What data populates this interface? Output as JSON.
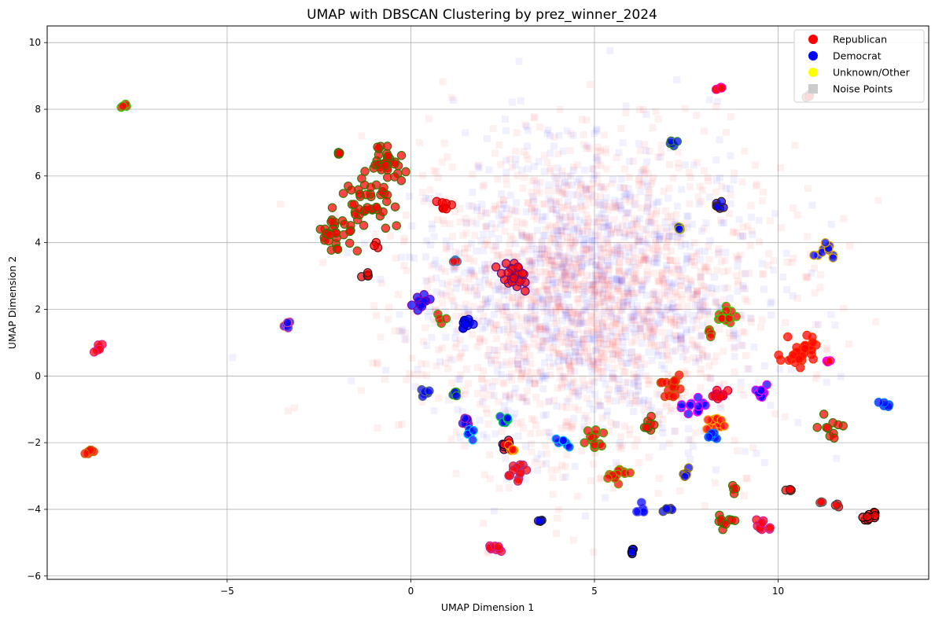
{
  "chart_data": {
    "type": "scatter",
    "title": "UMAP with DBSCAN Clustering by prez_winner_2024",
    "xlabel": "UMAP Dimension 1",
    "ylabel": "UMAP Dimension 2",
    "xlim": [
      -9.9,
      14.1
    ],
    "ylim": [
      -6.1,
      10.5
    ],
    "xticks": [
      -5,
      0,
      5,
      10
    ],
    "xtick_labels": [
      "−5",
      "0",
      "5",
      "10"
    ],
    "yticks": [
      -6,
      -4,
      -2,
      0,
      2,
      4,
      6,
      8,
      10
    ],
    "ytick_labels": [
      "−6",
      "−4",
      "−2",
      "0",
      "2",
      "4",
      "6",
      "8",
      "10"
    ],
    "grid": true,
    "legend_position": "top-right",
    "legend": [
      {
        "label": "Republican",
        "marker": "circle",
        "color": "#ff0000"
      },
      {
        "label": "Democrat",
        "marker": "circle",
        "color": "#0000ff"
      },
      {
        "label": "Unknown/Other",
        "marker": "circle",
        "color": "#ffff00"
      },
      {
        "label": "Noise Points",
        "marker": "square",
        "color": "#cccccc"
      }
    ],
    "noise_cloud": {
      "center": [
        4.8,
        2.5
      ],
      "spread": [
        2.4,
        2.3
      ],
      "red_fraction": 0.6,
      "alpha": 0.06
    },
    "clusters": [
      {
        "x": -7.8,
        "y": 8.1,
        "party": "Republican",
        "edge": "#33cc00",
        "n": 4,
        "sd": 0.05
      },
      {
        "x": -8.5,
        "y": 0.85,
        "party": "Republican",
        "edge": "#dd2288",
        "n": 6,
        "sd": 0.08
      },
      {
        "x": -8.8,
        "y": -2.3,
        "party": "Republican",
        "edge": "#cc6600",
        "n": 6,
        "sd": 0.07
      },
      {
        "x": -3.4,
        "y": 1.5,
        "party": "Democrat",
        "edge": "#dd4488",
        "n": 5,
        "sd": 0.07
      },
      {
        "x": -2.0,
        "y": 4.3,
        "party": "Republican",
        "edge": "#337700",
        "n": 30,
        "sd": 0.3
      },
      {
        "x": -1.2,
        "y": 5.3,
        "party": "Republican",
        "edge": "#337700",
        "n": 40,
        "sd": 0.35
      },
      {
        "x": -0.6,
        "y": 6.2,
        "party": "Republican",
        "edge": "#337700",
        "n": 30,
        "sd": 0.35
      },
      {
        "x": -2.0,
        "y": 6.6,
        "party": "Republican",
        "edge": "#337700",
        "n": 4,
        "sd": 0.08
      },
      {
        "x": -0.8,
        "y": 6.9,
        "party": "Republican",
        "edge": "#337700",
        "n": 4,
        "sd": 0.08
      },
      {
        "x": -1.2,
        "y": 3.0,
        "party": "Republican",
        "edge": "#222222",
        "n": 5,
        "sd": 0.05
      },
      {
        "x": -1.0,
        "y": 3.9,
        "party": "Republican",
        "edge": "#8b0000",
        "n": 3,
        "sd": 0.08
      },
      {
        "x": 0.9,
        "y": 5.15,
        "party": "Republican",
        "edge": "#cc0000",
        "n": 8,
        "sd": 0.08
      },
      {
        "x": 0.3,
        "y": 2.15,
        "party": "Democrat",
        "edge": "#8800aa",
        "n": 12,
        "sd": 0.15
      },
      {
        "x": 1.2,
        "y": 3.5,
        "party": "Republican",
        "edge": "#3388cc",
        "n": 4,
        "sd": 0.06
      },
      {
        "x": 0.8,
        "y": 1.7,
        "party": "Republican",
        "edge": "#33aa00",
        "n": 4,
        "sd": 0.06
      },
      {
        "x": 1.5,
        "y": 1.6,
        "party": "Democrat",
        "edge": "#0000aa",
        "n": 10,
        "sd": 0.09
      },
      {
        "x": 2.8,
        "y": 3.0,
        "party": "Republican",
        "edge": "#551188",
        "n": 25,
        "sd": 0.2
      },
      {
        "x": 0.4,
        "y": -0.5,
        "party": "Democrat",
        "edge": "#556677",
        "n": 6,
        "sd": 0.08
      },
      {
        "x": 1.2,
        "y": -0.5,
        "party": "Democrat",
        "edge": "#33aa00",
        "n": 6,
        "sd": 0.08
      },
      {
        "x": 1.5,
        "y": -1.4,
        "party": "Democrat",
        "edge": "#aa2299",
        "n": 6,
        "sd": 0.08
      },
      {
        "x": 1.6,
        "y": -1.75,
        "party": "Democrat",
        "edge": "#00ccff",
        "n": 6,
        "sd": 0.08
      },
      {
        "x": 2.6,
        "y": -1.4,
        "party": "Democrat",
        "edge": "#00cc55",
        "n": 6,
        "sd": 0.08
      },
      {
        "x": 2.55,
        "y": -2.1,
        "party": "Republican",
        "edge": "#220044",
        "n": 8,
        "sd": 0.1
      },
      {
        "x": 2.7,
        "y": -2.15,
        "party": "Republican",
        "edge": "#ffaa00",
        "n": 4,
        "sd": 0.06
      },
      {
        "x": 2.9,
        "y": -2.9,
        "party": "Republican",
        "edge": "#aa3388",
        "n": 12,
        "sd": 0.13
      },
      {
        "x": 2.3,
        "y": -5.2,
        "party": "Republican",
        "edge": "#cc2299",
        "n": 8,
        "sd": 0.08
      },
      {
        "x": 3.5,
        "y": -4.3,
        "party": "Democrat",
        "edge": "#222222",
        "n": 4,
        "sd": 0.05
      },
      {
        "x": 4.2,
        "y": -2.0,
        "party": "Democrat",
        "edge": "#00bbff",
        "n": 8,
        "sd": 0.1
      },
      {
        "x": 5.0,
        "y": -1.9,
        "party": "Republican",
        "edge": "#33aa00",
        "n": 12,
        "sd": 0.15
      },
      {
        "x": 5.6,
        "y": -2.9,
        "party": "Republican",
        "edge": "#77aa00",
        "n": 12,
        "sd": 0.15
      },
      {
        "x": 6.0,
        "y": -5.25,
        "party": "Democrat",
        "edge": "#000000",
        "n": 4,
        "sd": 0.04
      },
      {
        "x": 6.5,
        "y": -1.5,
        "party": "Republican",
        "edge": "#337700",
        "n": 8,
        "sd": 0.12
      },
      {
        "x": 6.3,
        "y": -4.0,
        "party": "Democrat",
        "edge": "#5555ff",
        "n": 6,
        "sd": 0.08
      },
      {
        "x": 7.0,
        "y": -4.0,
        "party": "Democrat",
        "edge": "#555555",
        "n": 5,
        "sd": 0.06
      },
      {
        "x": 7.0,
        "y": -0.3,
        "party": "Republican",
        "edge": "#cc5500",
        "n": 16,
        "sd": 0.15
      },
      {
        "x": 7.1,
        "y": 7.0,
        "party": "Democrat",
        "edge": "#338833",
        "n": 5,
        "sd": 0.07
      },
      {
        "x": 7.3,
        "y": 4.4,
        "party": "Democrat",
        "edge": "#aaaa00",
        "n": 4,
        "sd": 0.05
      },
      {
        "x": 7.5,
        "y": -2.9,
        "party": "Democrat",
        "edge": "#aa8800",
        "n": 5,
        "sd": 0.07
      },
      {
        "x": 7.7,
        "y": -0.9,
        "party": "Democrat",
        "edge": "#ff00ff",
        "n": 12,
        "sd": 0.15
      },
      {
        "x": 8.3,
        "y": -1.45,
        "party": "Republican",
        "edge": "#ffaa00",
        "n": 12,
        "sd": 0.12
      },
      {
        "x": 8.2,
        "y": -1.8,
        "party": "Democrat",
        "edge": "#0088ff",
        "n": 6,
        "sd": 0.08
      },
      {
        "x": 8.4,
        "y": -0.55,
        "party": "Republican",
        "edge": "#cc0055",
        "n": 10,
        "sd": 0.13
      },
      {
        "x": 8.45,
        "y": 8.6,
        "party": "Republican",
        "edge": "#ff00aa",
        "n": 5,
        "sd": 0.06
      },
      {
        "x": 8.4,
        "y": 5.15,
        "party": "Democrat",
        "edge": "#442200",
        "n": 6,
        "sd": 0.07
      },
      {
        "x": 8.6,
        "y": 1.8,
        "party": "Republican",
        "edge": "#33cc00",
        "n": 14,
        "sd": 0.15
      },
      {
        "x": 8.2,
        "y": 1.25,
        "party": "Republican",
        "edge": "#669900",
        "n": 4,
        "sd": 0.06
      },
      {
        "x": 8.6,
        "y": -4.3,
        "party": "Republican",
        "edge": "#228800",
        "n": 10,
        "sd": 0.12
      },
      {
        "x": 8.8,
        "y": -3.4,
        "party": "Republican",
        "edge": "#447700",
        "n": 4,
        "sd": 0.08
      },
      {
        "x": 9.5,
        "y": -0.5,
        "party": "Democrat",
        "edge": "#ff00ff",
        "n": 10,
        "sd": 0.1
      },
      {
        "x": 9.6,
        "y": -4.5,
        "party": "Republican",
        "edge": "#cc2299",
        "n": 10,
        "sd": 0.12
      },
      {
        "x": 10.6,
        "y": 0.8,
        "party": "Republican",
        "edge": "#ff3300",
        "n": 30,
        "sd": 0.25
      },
      {
        "x": 11.4,
        "y": 0.45,
        "party": "Republican",
        "edge": "#ff00ff",
        "n": 4,
        "sd": 0.06
      },
      {
        "x": 10.3,
        "y": -3.45,
        "party": "Republican",
        "edge": "#333333",
        "n": 4,
        "sd": 0.04
      },
      {
        "x": 11.2,
        "y": -3.75,
        "party": "Republican",
        "edge": "#666666",
        "n": 3,
        "sd": 0.04
      },
      {
        "x": 11.6,
        "y": -3.9,
        "party": "Republican",
        "edge": "#444444",
        "n": 3,
        "sd": 0.04
      },
      {
        "x": 11.4,
        "y": -1.5,
        "party": "Republican",
        "edge": "#337700",
        "n": 10,
        "sd": 0.2
      },
      {
        "x": 11.3,
        "y": 3.7,
        "party": "Democrat",
        "edge": "#ddaa00",
        "n": 10,
        "sd": 0.12
      },
      {
        "x": 12.5,
        "y": -4.2,
        "party": "Republican",
        "edge": "#000000",
        "n": 10,
        "sd": 0.1
      },
      {
        "x": 12.9,
        "y": -0.85,
        "party": "Democrat",
        "edge": "#0077ff",
        "n": 5,
        "sd": 0.07
      },
      {
        "x": 10.8,
        "y": 8.4,
        "party": "Republican",
        "edge": "#222222",
        "n": 3,
        "sd": 0.04
      }
    ]
  }
}
